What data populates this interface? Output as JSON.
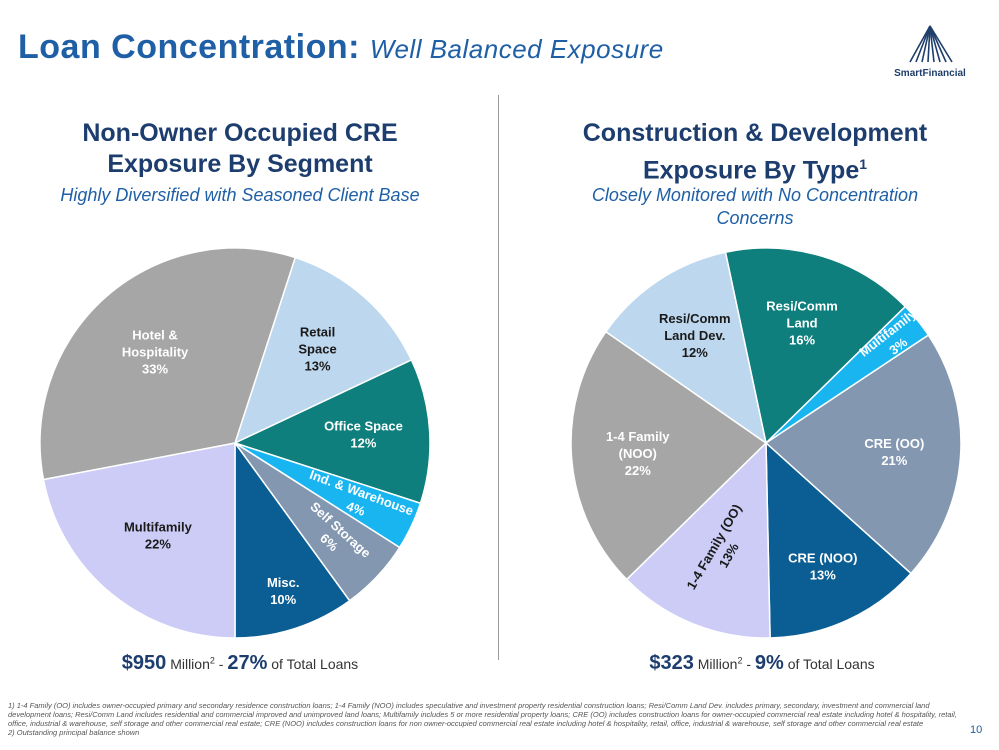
{
  "title": {
    "main": "Loan Concentration:",
    "sub": "Well Balanced Exposure"
  },
  "logo": {
    "text": "SmartFinancial",
    "icon": "triangle-burst-logo"
  },
  "left_panel": {
    "title": "Non-Owner Occupied CRE Exposure By Segment",
    "subtitle": "Highly Diversified with Seasoned Client Base",
    "total": {
      "amount": "$950",
      "unit": "Million",
      "sup": "2",
      "dash": " - ",
      "pct": "27%",
      "suffix": " of Total Loans"
    }
  },
  "right_panel": {
    "title": "Construction & Development Exposure By Type",
    "title_sup": "1",
    "subtitle": "Closely Monitored with No Concentration Concerns",
    "total": {
      "amount": "$323",
      "unit": "Million",
      "sup": "2",
      "dash": " - ",
      "pct": "9%",
      "suffix": " of Total Loans"
    }
  },
  "chart_data": [
    {
      "type": "pie",
      "title": "Non-Owner Occupied CRE Exposure By Segment",
      "slices": [
        {
          "label": "Retail Space",
          "value": 13,
          "pct_label": "13%",
          "color": "#bdd7ee",
          "text_color": "#1a1a1a"
        },
        {
          "label": "Office Space",
          "value": 12,
          "pct_label": "12%",
          "color": "#0e7f7c",
          "text_color": "#ffffff"
        },
        {
          "label": "Ind. & Warehouse",
          "value": 4,
          "pct_label": "4%",
          "color": "#19b5f0",
          "text_color": "#ffffff"
        },
        {
          "label": "Self Storage",
          "value": 6,
          "pct_label": "6%",
          "color": "#8497b0",
          "text_color": "#ffffff"
        },
        {
          "label": "Misc.",
          "value": 10,
          "pct_label": "10%",
          "color": "#0b5e93",
          "text_color": "#ffffff"
        },
        {
          "label": "Multifamily",
          "value": 22,
          "pct_label": "22%",
          "color": "#ccccf6",
          "text_color": "#1a1a1a"
        },
        {
          "label": "Hotel & Hospitality",
          "value": 33,
          "pct_label": "33%",
          "color": "#a6a6a6",
          "text_color": "#ffffff"
        }
      ]
    },
    {
      "type": "pie",
      "title": "Construction & Development Exposure By Type",
      "slices": [
        {
          "label": "Resi/Comm Land",
          "value": 16,
          "pct_label": "16%",
          "color": "#0e7f7c",
          "text_color": "#ffffff"
        },
        {
          "label": "Multifamily",
          "value": 3,
          "pct_label": "3%",
          "color": "#19b5f0",
          "text_color": "#ffffff"
        },
        {
          "label": "CRE (OO)",
          "value": 21,
          "pct_label": "21%",
          "color": "#8497b0",
          "text_color": "#ffffff"
        },
        {
          "label": "CRE (NOO)",
          "value": 13,
          "pct_label": "13%",
          "color": "#0b5e93",
          "text_color": "#ffffff"
        },
        {
          "label": "1-4 Family (OO)",
          "value": 13,
          "pct_label": "13%",
          "color": "#ccccf6",
          "text_color": "#1a1a1a"
        },
        {
          "label": "1-4 Family (NOO)",
          "value": 22,
          "pct_label": "22%",
          "color": "#a6a6a6",
          "text_color": "#ffffff"
        },
        {
          "label": "Resi/Comm Land Dev.",
          "value": 12,
          "pct_label": "12%",
          "color": "#bdd7ee",
          "text_color": "#1a1a1a"
        }
      ]
    }
  ],
  "footnotes": [
    "1) 1-4 Family (OO) includes owner-occupied primary and secondary residence construction loans; 1-4 Family (NOO) includes speculative and investment property residential construction loans; Resi/Comm Land Dev. includes primary, secondary, investment and commercial land development loans; Resi/Comm Land includes residential and commercial improved and unimproved land loans; Multifamily includes 5 or more residential property loans; CRE (OO) includes construction loans for owner-occupied commercial real estate including hotel & hospitality, retail, office, industrial & warehouse, self storage and other commercial real estate; CRE (NOO) includes construction loans for non owner-occupied commercial real estate including hotel & hospitality, retail, office, industrial & warehouse, self storage and other commercial real estate",
    "2) Outstanding principal balance shown"
  ],
  "page_number": "10"
}
